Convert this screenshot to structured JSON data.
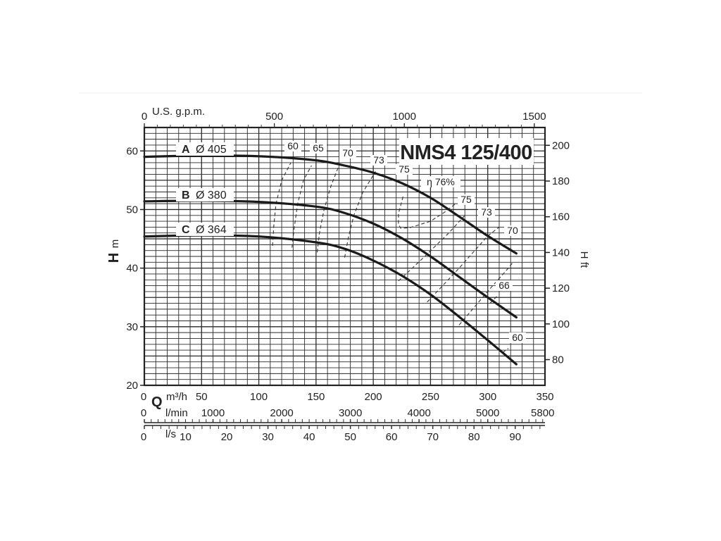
{
  "chart_data": {
    "type": "line",
    "title": "NMS4 125/400",
    "x_unit": "m³/h",
    "xlim": [
      0,
      350
    ],
    "ylim": [
      20,
      64
    ],
    "grid": true,
    "axes": {
      "q_letter": "Q",
      "h_letter": "H",
      "h_left_unit": "m",
      "h_right_unit": "ft",
      "m3h": {
        "unit": "m³/h",
        "ticks": [
          "0",
          "50",
          "100",
          "150",
          "200",
          "250",
          "300",
          "350"
        ]
      },
      "lmin": {
        "unit": "l/min",
        "ticks": [
          "0",
          "1000",
          "2000",
          "3000",
          "4000",
          "5000",
          "5800"
        ]
      },
      "ls": {
        "unit": "l/s",
        "ticks": [
          "0",
          "10",
          "20",
          "30",
          "40",
          "50",
          "60",
          "70",
          "80",
          "90"
        ]
      },
      "gpm": {
        "unit": "U.S. g.p.m.",
        "ticks": [
          "0",
          "500",
          "1000",
          "1500"
        ]
      },
      "h_m": {
        "ticks": [
          "20",
          "30",
          "40",
          "50",
          "60"
        ]
      },
      "h_ft": {
        "ticks": [
          "80",
          "100",
          "120",
          "140",
          "160",
          "180",
          "200"
        ]
      }
    },
    "series": [
      {
        "letter": "A",
        "name": "Ø 405",
        "points": [
          [
            0,
            59
          ],
          [
            50,
            59.2
          ],
          [
            100,
            59.1
          ],
          [
            150,
            58.4
          ],
          [
            175,
            57.5
          ],
          [
            200,
            56.3
          ],
          [
            225,
            54.5
          ],
          [
            250,
            52
          ],
          [
            275,
            48.8
          ],
          [
            300,
            45.5
          ],
          [
            325,
            42.5
          ]
        ]
      },
      {
        "letter": "B",
        "name": "Ø 380",
        "points": [
          [
            0,
            51.4
          ],
          [
            50,
            51.5
          ],
          [
            100,
            51.3
          ],
          [
            150,
            50.5
          ],
          [
            175,
            49.4
          ],
          [
            200,
            47.6
          ],
          [
            225,
            45.1
          ],
          [
            250,
            42
          ],
          [
            275,
            38.5
          ],
          [
            300,
            35
          ],
          [
            325,
            31.6
          ]
        ]
      },
      {
        "letter": "C",
        "name": "Ø 364",
        "points": [
          [
            0,
            45.4
          ],
          [
            50,
            45.6
          ],
          [
            100,
            45.4
          ],
          [
            150,
            44.4
          ],
          [
            175,
            43.3
          ],
          [
            200,
            41.3
          ],
          [
            225,
            38.7
          ],
          [
            250,
            35.5
          ],
          [
            275,
            31.7
          ],
          [
            300,
            27.7
          ],
          [
            325,
            23.6
          ]
        ]
      }
    ],
    "efficiency": {
      "eta_label": "η 76%",
      "contours": [
        {
          "label": "60",
          "points": [
            [
              112,
              43.8
            ],
            [
              113,
              47
            ],
            [
              115,
              51
            ],
            [
              120,
              55
            ],
            [
              128,
              58
            ]
          ]
        },
        {
          "label": "65",
          "points": [
            [
              129,
              43.5
            ],
            [
              131,
              47
            ],
            [
              134,
              51
            ],
            [
              139,
              55
            ],
            [
              146,
              57.5
            ]
          ]
        },
        {
          "label": "70",
          "points": [
            [
              151,
              42.7
            ],
            [
              153,
              46
            ],
            [
              157,
              50
            ],
            [
              163,
              54
            ],
            [
              170,
              57.5
            ]
          ]
        },
        {
          "label": "73",
          "points": [
            [
              175,
              41.8
            ],
            [
              178,
              45
            ],
            [
              183,
              49
            ],
            [
              191,
              53
            ],
            [
              202,
              56.5
            ]
          ]
        },
        {
          "label": "75",
          "points": [
            [
              226,
              52.2
            ],
            [
              222,
              49.3
            ],
            [
              222,
              47.5
            ],
            [
              224,
              46.8
            ],
            [
              232,
              46.9
            ],
            [
              250,
              48
            ],
            [
              262,
              49.5
            ],
            [
              272,
              51
            ]
          ]
        },
        {
          "label": "75",
          "points": [
            [
              222,
              37.8
            ],
            [
              245,
              42
            ],
            [
              266,
              46
            ],
            [
              280,
              49
            ]
          ]
        },
        {
          "label": "73",
          "points": [
            [
              247,
              34.2
            ],
            [
              275,
              40
            ],
            [
              300,
              45.5
            ],
            [
              310,
              47
            ]
          ]
        },
        {
          "label": "70",
          "points": [
            [
              275,
              30.3
            ],
            [
              302,
              36.5
            ],
            [
              318,
              40
            ],
            [
              322,
              41
            ]
          ]
        },
        {
          "label": "66",
          "points": [
            [
              302,
              34
            ],
            [
              308,
              35.2
            ]
          ]
        },
        {
          "label": "60",
          "points": [
            [
              313,
              25.6
            ],
            [
              318,
              26.3
            ]
          ]
        }
      ]
    }
  }
}
